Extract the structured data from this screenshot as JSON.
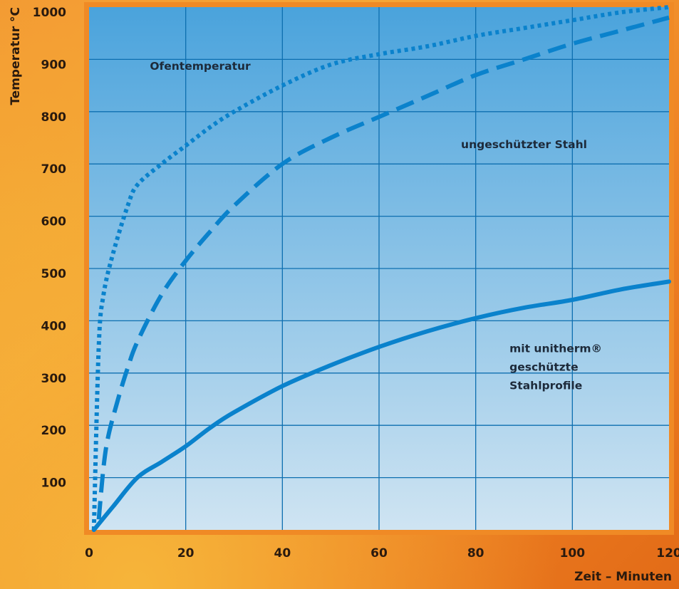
{
  "chart_data": {
    "type": "line",
    "xlabel": "Zeit – Minuten",
    "ylabel": "Temperatur °C",
    "xlim": [
      0,
      120
    ],
    "ylim": [
      0,
      1000
    ],
    "x_ticks": [
      "0",
      "20",
      "40",
      "60",
      "80",
      "100",
      "120"
    ],
    "y_ticks": [
      "100",
      "200",
      "300",
      "400",
      "500",
      "600",
      "700",
      "800",
      "900",
      "1000"
    ],
    "grid": true,
    "series": [
      {
        "name": "Ofentemperatur",
        "style": "dotted",
        "x": [
          1,
          2,
          3,
          5,
          8,
          10,
          15,
          20,
          25,
          30,
          40,
          50,
          60,
          70,
          80,
          90,
          100,
          110,
          120
        ],
        "y": [
          0,
          350,
          450,
          530,
          620,
          660,
          700,
          735,
          770,
          800,
          850,
          890,
          910,
          925,
          945,
          960,
          975,
          990,
          1000
        ]
      },
      {
        "name": "ungeschützter Stahl",
        "style": "dashed",
        "x": [
          2,
          3,
          4,
          6,
          8,
          10,
          15,
          20,
          25,
          30,
          40,
          50,
          60,
          70,
          80,
          90,
          100,
          110,
          120
        ],
        "y": [
          20,
          120,
          180,
          250,
          310,
          360,
          450,
          515,
          570,
          620,
          700,
          750,
          790,
          830,
          870,
          900,
          930,
          955,
          980
        ]
      },
      {
        "name": "mit unitherm® geschützte Stahlprofile",
        "style": "solid",
        "x": [
          1,
          5,
          10,
          15,
          20,
          25,
          30,
          40,
          50,
          60,
          70,
          80,
          90,
          100,
          110,
          120
        ],
        "y": [
          0,
          45,
          100,
          130,
          160,
          195,
          225,
          275,
          315,
          350,
          380,
          405,
          425,
          440,
          460,
          475
        ]
      }
    ],
    "annotations": [
      {
        "text": "Ofentemperatur"
      },
      {
        "text": "ungeschützter Stahl"
      },
      {
        "lines": [
          "mit unitherm®",
          "geschützte",
          "Stahlprofile"
        ]
      }
    ]
  },
  "colors": {
    "line": "#0a82cc",
    "grid": "#0e6fb0",
    "plot_top": "#4aa3dc",
    "plot_bottom": "#cfe4f2"
  }
}
